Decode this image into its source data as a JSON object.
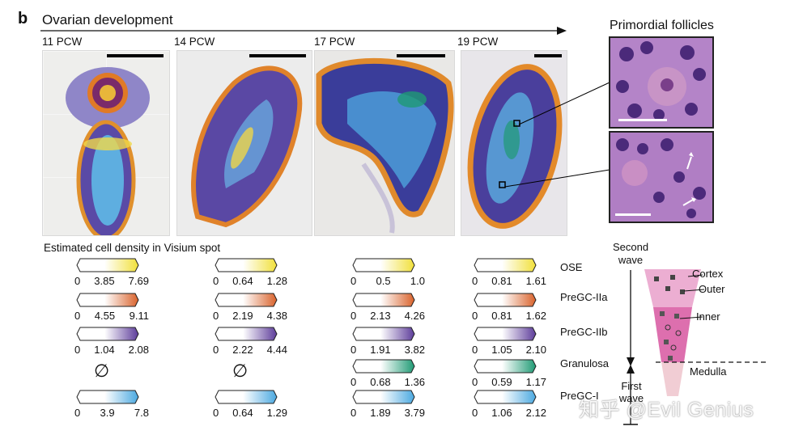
{
  "figure": {
    "panel_label": "b",
    "title": "Ovarian development",
    "timepoints": [
      "11 PCW",
      "14 PCW",
      "17 PCW",
      "19 PCW"
    ],
    "inset_title": "Primordial follicles",
    "density_title": "Estimated cell density in Visium spot",
    "cell_types": [
      "OSE",
      "PreGC-IIa",
      "PreGC-IIb",
      "Granulosa",
      "PreGC-I"
    ],
    "legend_colors": {
      "OSE": "#f1e03a",
      "PreGC-IIa": "#d9622b",
      "PreGC-IIb": "#5d3c9a",
      "Granulosa": "#1f9a74",
      "PreGC-I": "#4aa8e0"
    },
    "empty_symbol": "∅",
    "scales": [
      {
        "OSE": [
          "0",
          "3.85",
          "7.69"
        ],
        "PreGC-IIa": [
          "0",
          "4.55",
          "9.11"
        ],
        "PreGC-IIb": [
          "0",
          "1.04",
          "2.08"
        ],
        "Granulosa": null,
        "PreGC-I": [
          "0",
          "3.9",
          "7.8"
        ]
      },
      {
        "OSE": [
          "0",
          "0.64",
          "1.28"
        ],
        "PreGC-IIa": [
          "0",
          "2.19",
          "4.38"
        ],
        "PreGC-IIb": [
          "0",
          "2.22",
          "4.44"
        ],
        "Granulosa": null,
        "PreGC-I": [
          "0",
          "0.64",
          "1.29"
        ]
      },
      {
        "OSE": [
          "0",
          "0.5",
          "1.0"
        ],
        "PreGC-IIa": [
          "0",
          "2.13",
          "4.26"
        ],
        "PreGC-IIb": [
          "0",
          "1.91",
          "3.82"
        ],
        "Granulosa": [
          "0",
          "0.68",
          "1.36"
        ],
        "PreGC-I": [
          "0",
          "1.89",
          "3.79"
        ]
      },
      {
        "OSE": [
          "0",
          "0.81",
          "1.61"
        ],
        "PreGC-IIa": [
          "0",
          "0.81",
          "1.62"
        ],
        "PreGC-IIb": [
          "0",
          "1.05",
          "2.10"
        ],
        "Granulosa": [
          "0",
          "0.59",
          "1.17"
        ],
        "PreGC-I": [
          "0",
          "1.06",
          "2.12"
        ]
      }
    ],
    "diagram": {
      "second_wave": "Second wave",
      "first_wave": "First wave",
      "cortex": "Cortex",
      "outer": "Outer",
      "inner": "Inner",
      "medulla": "Medulla"
    },
    "watermark": "知乎 @Evil Genius"
  }
}
